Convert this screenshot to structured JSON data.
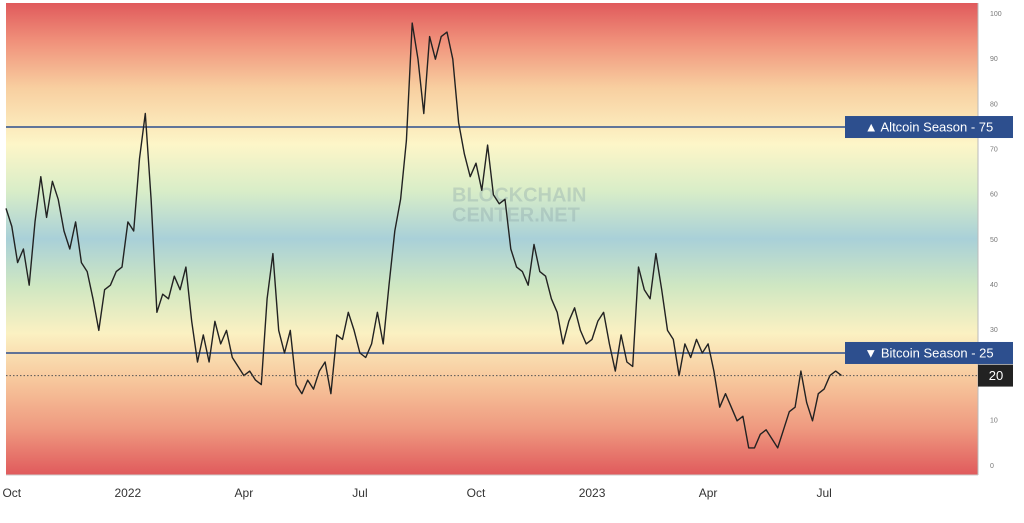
{
  "chart_data": {
    "type": "line",
    "categories": [
      null,
      "Oct",
      null,
      null,
      null,
      null,
      null,
      null,
      null,
      null,
      null,
      null,
      null,
      null,
      null,
      null,
      null,
      null,
      null,
      null,
      null,
      "2022",
      null,
      null,
      null,
      null,
      null,
      null,
      null,
      null,
      null,
      null,
      null,
      null,
      null,
      null,
      null,
      null,
      null,
      null,
      null,
      "Apr",
      null,
      null,
      null,
      null,
      null,
      null,
      null,
      null,
      null,
      null,
      null,
      null,
      null,
      null,
      null,
      null,
      null,
      null,
      null,
      "Jul",
      null,
      null,
      null,
      null,
      null,
      null,
      null,
      null,
      null,
      null,
      null,
      null,
      null,
      null,
      null,
      null,
      null,
      null,
      null,
      "Oct",
      null,
      null,
      null,
      null,
      null,
      null,
      null,
      null,
      null,
      null,
      null,
      null,
      null,
      null,
      null,
      null,
      null,
      null,
      null,
      "2023",
      null,
      null,
      null,
      null,
      null,
      null,
      null,
      null,
      null,
      null,
      null,
      null,
      null,
      null,
      null,
      null,
      null,
      null,
      null,
      "Apr",
      null,
      null,
      null,
      null,
      null,
      null,
      null,
      null,
      null,
      null,
      null,
      null,
      null,
      null,
      null,
      null,
      null,
      null,
      null,
      "Jul",
      null,
      null,
      null,
      null,
      null,
      null,
      null,
      null,
      null,
      null,
      null,
      null,
      null,
      null,
      null,
      null,
      null,
      null,
      null,
      null,
      null,
      null,
      null,
      null,
      null,
      null
    ],
    "values": [
      57,
      53,
      45,
      48,
      40,
      54,
      64,
      55,
      63,
      59,
      52,
      48,
      54,
      45,
      43,
      37,
      30,
      39,
      40,
      43,
      44,
      54,
      52,
      68,
      78,
      59,
      34,
      38,
      37,
      42,
      39,
      44,
      32,
      23,
      29,
      23,
      32,
      27,
      30,
      24,
      22,
      20,
      21,
      19,
      18,
      37,
      47,
      30,
      25,
      30,
      18,
      16,
      19,
      17,
      21,
      23,
      16,
      29,
      28,
      34,
      30,
      25,
      24,
      27,
      34,
      27,
      40,
      52,
      59,
      72,
      98,
      90,
      78,
      95,
      90,
      95,
      96,
      90,
      76,
      69,
      64,
      67,
      61,
      71,
      60,
      58,
      59,
      48,
      44,
      43,
      40,
      49,
      43,
      42,
      37,
      34,
      27,
      32,
      35,
      30,
      27,
      28,
      32,
      34,
      27,
      21,
      29,
      23,
      22,
      44,
      39,
      37,
      47,
      39,
      30,
      28,
      20,
      27,
      24,
      28,
      25,
      27,
      21,
      13,
      16,
      13,
      10,
      11,
      4,
      4,
      7,
      8,
      6,
      4,
      8,
      12,
      13,
      21,
      14,
      10,
      16,
      17,
      20,
      21,
      20,
      null,
      null,
      null,
      null,
      null,
      null,
      null,
      null,
      null,
      null,
      null,
      null,
      null,
      null,
      null,
      null,
      null,
      null,
      null,
      null,
      null,
      null,
      null
    ],
    "color": "#222222",
    "ylim": [
      -2,
      102
    ],
    "yticks": [
      0,
      10,
      20,
      30,
      40,
      50,
      60,
      70,
      80,
      90,
      100
    ],
    "reference_lines": [
      {
        "value": 75,
        "label": "▲ Altcoin Season - 75",
        "color": "#2d4f8e"
      },
      {
        "value": 25,
        "label": "▼ Bitcoin Season - 25",
        "color": "#2d4f8e"
      }
    ],
    "watermark": [
      "BLOCKCHAIN",
      "CENTER.NET"
    ]
  }
}
